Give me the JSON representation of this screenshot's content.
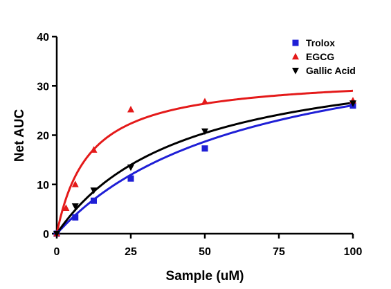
{
  "chart_data": {
    "type": "scatter",
    "title": "",
    "xlabel": "Sample (uM)",
    "ylabel": "Net AUC",
    "xlim": [
      0,
      100
    ],
    "ylim": [
      0,
      40
    ],
    "x_ticks": [
      0,
      25,
      50,
      75,
      100
    ],
    "y_ticks": [
      0,
      10,
      20,
      30,
      40
    ],
    "grid": false,
    "legend_position": "top-right",
    "series": [
      {
        "name": "Trolox",
        "color": "#1f1fd6",
        "marker": "square",
        "x": [
          0,
          6.25,
          12.5,
          25,
          50,
          100
        ],
        "y": [
          0,
          3.3,
          6.7,
          11.2,
          17.3,
          26.0
        ],
        "fit": {
          "model": "one-site hyperbola",
          "bmax": 43.0,
          "kd": 65.0
        }
      },
      {
        "name": "EGCG",
        "color": "#e41a1a",
        "marker": "triangle-up",
        "x": [
          0,
          3.125,
          6.25,
          12.5,
          25,
          50,
          100
        ],
        "y": [
          0,
          5.2,
          10.0,
          17.0,
          25.2,
          26.8,
          27.0
        ],
        "fit": {
          "model": "one-site hyperbola",
          "bmax": 32.2,
          "kd": 11.0
        }
      },
      {
        "name": "Gallic Acid",
        "color": "#000000",
        "marker": "triangle-down",
        "x": [
          0,
          6.25,
          12.5,
          25,
          50,
          100
        ],
        "y": [
          0,
          5.6,
          8.8,
          13.5,
          20.8,
          26.5
        ],
        "fit": {
          "model": "one-site hyperbola",
          "bmax": 38.0,
          "kd": 43.0
        }
      }
    ]
  }
}
